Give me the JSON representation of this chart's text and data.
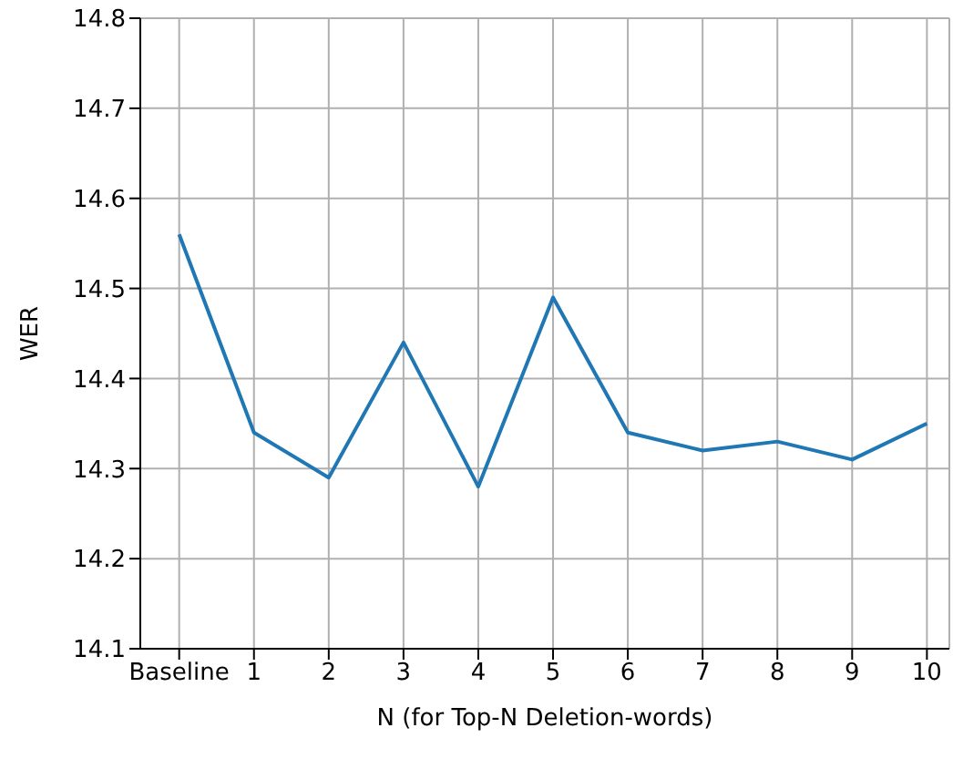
{
  "chart_data": {
    "type": "line",
    "xlabel": "N (for Top-N Deletion-words)",
    "ylabel": "WER",
    "categories": [
      "Baseline",
      "1",
      "2",
      "3",
      "4",
      "5",
      "6",
      "7",
      "8",
      "9",
      "10"
    ],
    "series": [
      {
        "color": "#1f77b4",
        "values": [
          14.56,
          14.34,
          14.29,
          14.44,
          14.28,
          14.49,
          14.34,
          14.32,
          14.33,
          14.31,
          14.35
        ]
      }
    ],
    "ylim": [
      14.1,
      14.8
    ],
    "yticks": [
      14.1,
      14.2,
      14.3,
      14.4,
      14.5,
      14.6,
      14.7,
      14.8
    ],
    "grid": true,
    "marker": "none",
    "line_style": "solid"
  }
}
